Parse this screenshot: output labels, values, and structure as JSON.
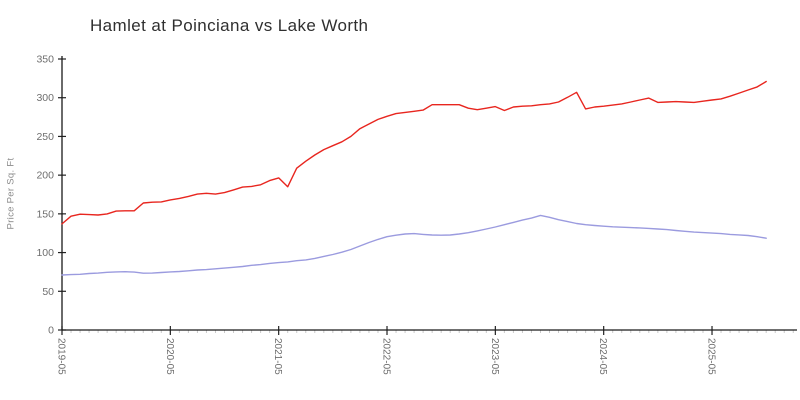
{
  "chart_data": {
    "type": "line",
    "title": "Hamlet at Poinciana vs Lake Worth",
    "xlabel": "",
    "ylabel": "Price Per Sq. Ft",
    "ylim": [
      0,
      350
    ],
    "yticks": [
      0,
      50,
      100,
      150,
      200,
      250,
      300,
      350
    ],
    "xticks": [
      "2019-05",
      "2020-05",
      "2021-05",
      "2022-05",
      "2023-05",
      "2024-05",
      "2025-05"
    ],
    "grid": false,
    "legend": "none",
    "x": [
      "2019-05",
      "2019-06",
      "2019-07",
      "2019-08",
      "2019-09",
      "2019-10",
      "2019-11",
      "2019-12",
      "2020-01",
      "2020-02",
      "2020-03",
      "2020-04",
      "2020-05",
      "2020-06",
      "2020-07",
      "2020-08",
      "2020-09",
      "2020-10",
      "2020-11",
      "2020-12",
      "2021-01",
      "2021-02",
      "2021-03",
      "2021-04",
      "2021-05",
      "2021-06",
      "2021-07",
      "2021-08",
      "2021-09",
      "2021-10",
      "2021-11",
      "2021-12",
      "2022-01",
      "2022-02",
      "2022-03",
      "2022-04",
      "2022-05",
      "2022-06",
      "2022-07",
      "2022-08",
      "2022-09",
      "2022-10",
      "2022-11",
      "2022-12",
      "2023-01",
      "2023-02",
      "2023-03",
      "2023-04",
      "2023-05",
      "2023-06",
      "2023-07",
      "2023-08",
      "2023-09",
      "2023-10",
      "2023-11",
      "2023-12",
      "2024-01",
      "2024-02",
      "2024-03",
      "2024-04",
      "2024-05",
      "2024-06",
      "2024-07",
      "2024-08",
      "2024-09",
      "2024-10",
      "2024-11",
      "2024-12",
      "2025-01",
      "2025-02",
      "2025-03",
      "2025-04",
      "2025-05",
      "2025-06",
      "2025-07",
      "2025-08",
      "2025-09",
      "2025-10",
      "2025-11"
    ],
    "series": [
      {
        "name": "Hamlet at Poinciana",
        "color": "#e8261f",
        "values": [
          137,
          147,
          149.5,
          149,
          148.5,
          150,
          153.5,
          154,
          154,
          164,
          165,
          165.5,
          168,
          170,
          172.5,
          175.5,
          176.5,
          175.5,
          177.5,
          181,
          184.5,
          185.5,
          187.5,
          193,
          196.5,
          185,
          209,
          218,
          226,
          233,
          238,
          243,
          250,
          260,
          266,
          272,
          276,
          279.5,
          281,
          282.5,
          284,
          291,
          291,
          291,
          291,
          286.5,
          284.5,
          286.5,
          288.5,
          283.5,
          288,
          289,
          289.5,
          291,
          292,
          294.5,
          300.5,
          307,
          285.5,
          288,
          289,
          290.5,
          292,
          294.5,
          297,
          299.5,
          294,
          294.5,
          295,
          294.5,
          294,
          295.5,
          297,
          298.5,
          302,
          306,
          310,
          314,
          321
        ]
      },
      {
        "name": "Lake Worth",
        "color": "#9b9bdf",
        "values": [
          71,
          71.5,
          72,
          73,
          73.5,
          74.5,
          75,
          75.3,
          74.8,
          73.3,
          73.5,
          74.2,
          75,
          75.5,
          76.5,
          77.5,
          78,
          79,
          80,
          81,
          82,
          83.5,
          84.5,
          86,
          87,
          88,
          89.5,
          90.5,
          92.5,
          95,
          97.5,
          100.5,
          104,
          108.5,
          113,
          117,
          120.5,
          122.5,
          124,
          124.5,
          123.5,
          122.7,
          122.5,
          122.7,
          124,
          125.7,
          128,
          130.5,
          133,
          136,
          139,
          142,
          144.5,
          148,
          145.5,
          142.5,
          140,
          137.5,
          136,
          135,
          134,
          133.3,
          132.8,
          132.3,
          131.8,
          131.2,
          130.4,
          129.7,
          128.5,
          127.5,
          126.5,
          125.8,
          125.2,
          124.5,
          123.5,
          122.8,
          122,
          120.5,
          118.5
        ]
      }
    ],
    "colors": {
      "spine": "#1a1a1a",
      "major_tick": "#222222",
      "minor_tick": "#c9c9c9",
      "tick_label": "#6e6e6e",
      "title": "#2f2f2f",
      "ylabel": "#8a8a8a"
    }
  }
}
